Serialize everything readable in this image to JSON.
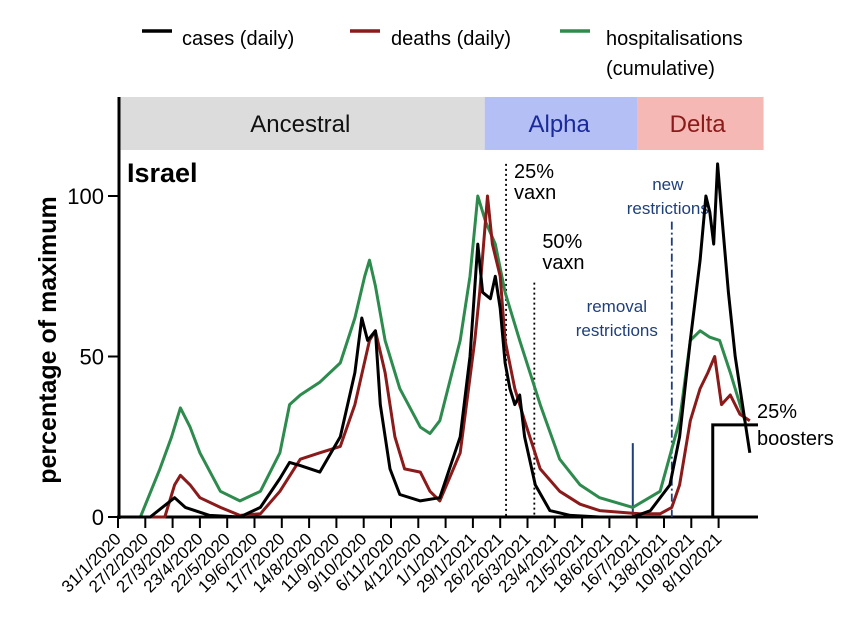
{
  "chart_data": {
    "type": "line",
    "title": "Israel",
    "xlabel": "",
    "ylabel": "percentage of maximum",
    "ylim": [
      0,
      125
    ],
    "xlim_days_since_start": [
      0,
      658
    ],
    "x_unit": "days since 31/1/2020",
    "yticks": [
      "0",
      "50",
      "100"
    ],
    "xticks": [
      "31/1/2020",
      "27/2/2020",
      "27/3/2020",
      "23/4/2020",
      "22/5/2020",
      "19/6/2020",
      "17/7/2020",
      "14/8/2020",
      "11/9/2020",
      "9/10/2020",
      "6/11/2020",
      "4/12/2020",
      "1/1/2021",
      "29/1/2021",
      "26/2/2021",
      "26/3/2021",
      "23/4/2021",
      "21/5/2021",
      "18/6/2021",
      "16/7/2021",
      "13/8/2021",
      "10/9/2021",
      "8/10/2021"
    ],
    "xtick_labels_display": [
      "31/1/2020",
      "27/2/2020",
      "27/3/2020",
      "23/4/2020",
      "22/5/2020",
      "19/6/2020",
      "17/7/2020",
      "14/8/2020",
      "11/9/2020",
      "9/10/2020",
      "6/11/2020",
      "4/12/2020",
      "1/1/2021",
      "29/1/2021",
      "26/2/2021",
      "26/3/2021",
      "23/4/2021",
      "21/5/2021",
      "18/6/2021",
      "16/7/2021",
      "13/8/2021",
      "10/9/2021",
      "8/10/2021"
    ],
    "legend": {
      "placement": "top"
    },
    "series": [
      {
        "name": "cases (daily)",
        "color": "#000000",
        "points": [
          [
            0,
            0
          ],
          [
            33,
            0
          ],
          [
            58,
            6
          ],
          [
            69,
            3
          ],
          [
            94,
            0.5
          ],
          [
            125,
            0
          ],
          [
            146,
            3
          ],
          [
            166,
            12
          ],
          [
            176,
            17
          ],
          [
            187,
            16
          ],
          [
            207,
            14
          ],
          [
            228,
            25
          ],
          [
            243,
            45
          ],
          [
            250,
            62
          ],
          [
            256,
            55
          ],
          [
            264,
            58
          ],
          [
            269,
            35
          ],
          [
            279,
            15
          ],
          [
            289,
            7
          ],
          [
            310,
            5
          ],
          [
            330,
            6
          ],
          [
            351,
            25
          ],
          [
            361,
            50
          ],
          [
            369,
            85
          ],
          [
            374,
            70
          ],
          [
            382,
            68
          ],
          [
            387,
            75
          ],
          [
            392,
            65
          ],
          [
            397,
            48
          ],
          [
            402,
            40
          ],
          [
            407,
            35
          ],
          [
            412,
            38
          ],
          [
            417,
            25
          ],
          [
            428,
            10
          ],
          [
            443,
            2
          ],
          [
            464,
            0.5
          ],
          [
            494,
            0
          ],
          [
            528,
            0
          ],
          [
            546,
            2
          ],
          [
            566,
            10
          ],
          [
            576,
            25
          ],
          [
            587,
            55
          ],
          [
            597,
            80
          ],
          [
            603,
            100
          ],
          [
            607,
            95
          ],
          [
            611,
            85
          ],
          [
            615,
            110
          ],
          [
            619,
            95
          ],
          [
            626,
            70
          ],
          [
            633,
            50
          ],
          [
            643,
            30
          ],
          [
            648,
            20
          ]
        ]
      },
      {
        "name": "deaths (daily)",
        "color": "#8b1a1a",
        "points": [
          [
            33,
            0
          ],
          [
            48,
            0
          ],
          [
            58,
            10
          ],
          [
            64,
            13
          ],
          [
            74,
            10
          ],
          [
            84,
            6
          ],
          [
            105,
            3
          ],
          [
            125,
            0.5
          ],
          [
            146,
            1
          ],
          [
            166,
            8
          ],
          [
            187,
            18
          ],
          [
            207,
            20
          ],
          [
            228,
            22
          ],
          [
            243,
            35
          ],
          [
            258,
            55
          ],
          [
            264,
            58
          ],
          [
            274,
            45
          ],
          [
            284,
            25
          ],
          [
            294,
            15
          ],
          [
            310,
            14
          ],
          [
            320,
            8
          ],
          [
            330,
            5
          ],
          [
            351,
            20
          ],
          [
            366,
            55
          ],
          [
            371,
            70
          ],
          [
            379,
            100
          ],
          [
            384,
            85
          ],
          [
            392,
            75
          ],
          [
            397,
            55
          ],
          [
            407,
            40
          ],
          [
            417,
            30
          ],
          [
            433,
            15
          ],
          [
            453,
            8
          ],
          [
            474,
            4
          ],
          [
            494,
            2
          ],
          [
            535,
            1
          ],
          [
            556,
            1
          ],
          [
            568,
            3
          ],
          [
            576,
            10
          ],
          [
            587,
            30
          ],
          [
            597,
            40
          ],
          [
            605,
            45
          ],
          [
            612,
            50
          ],
          [
            619,
            35
          ],
          [
            628,
            38
          ],
          [
            638,
            32
          ],
          [
            648,
            30
          ]
        ]
      },
      {
        "name": "hospitalisations (cumulative)",
        "color": "#2e8b4e",
        "points": [
          [
            23,
            0
          ],
          [
            43,
            15
          ],
          [
            55,
            25
          ],
          [
            64,
            34
          ],
          [
            74,
            28
          ],
          [
            84,
            20
          ],
          [
            105,
            8
          ],
          [
            125,
            5
          ],
          [
            146,
            8
          ],
          [
            166,
            20
          ],
          [
            176,
            35
          ],
          [
            187,
            38
          ],
          [
            207,
            42
          ],
          [
            228,
            48
          ],
          [
            243,
            62
          ],
          [
            253,
            75
          ],
          [
            258,
            80
          ],
          [
            264,
            72
          ],
          [
            274,
            55
          ],
          [
            289,
            40
          ],
          [
            310,
            28
          ],
          [
            320,
            26
          ],
          [
            330,
            30
          ],
          [
            351,
            55
          ],
          [
            361,
            75
          ],
          [
            369,
            100
          ],
          [
            377,
            92
          ],
          [
            387,
            85
          ],
          [
            397,
            70
          ],
          [
            412,
            55
          ],
          [
            433,
            35
          ],
          [
            453,
            18
          ],
          [
            474,
            10
          ],
          [
            494,
            6
          ],
          [
            528,
            3
          ],
          [
            556,
            8
          ],
          [
            576,
            30
          ],
          [
            587,
            55
          ],
          [
            597,
            58
          ],
          [
            607,
            56
          ],
          [
            617,
            55
          ],
          [
            628,
            45
          ],
          [
            643,
            30
          ]
        ]
      }
    ],
    "variant_bands": [
      {
        "label": "Ancestral",
        "start": 0,
        "end": 374,
        "color": "#dcdcdc",
        "text_color": "#111111"
      },
      {
        "label": "Alpha",
        "start": 374,
        "end": 531,
        "color": "#b4bff5",
        "text_color": "#1a2a9a"
      },
      {
        "label": "Delta",
        "start": 531,
        "end": 658,
        "color": "#f6b8b4",
        "text_color": "#8b1a1a"
      }
    ],
    "annotations": [
      {
        "line1": "25%",
        "line2": "vaxn",
        "day": 398,
        "style": "dotted",
        "color": "#000000",
        "top": 110
      },
      {
        "line1": "50%",
        "line2": "vaxn",
        "day": 427,
        "style": "dotted",
        "color": "#000000",
        "top": 73
      },
      {
        "line1": "removal",
        "line2": "restrictions",
        "day": 528,
        "style": "solid",
        "color": "#1f3f7a",
        "top": 23
      },
      {
        "line1": "new",
        "line2": "restrictions",
        "day": 568,
        "style": "dashdot",
        "color": "#1f3f7a",
        "top": 92
      }
    ],
    "boosters": {
      "line1": "25%",
      "line2": "boosters",
      "day": 610,
      "level": 28.7
    }
  }
}
